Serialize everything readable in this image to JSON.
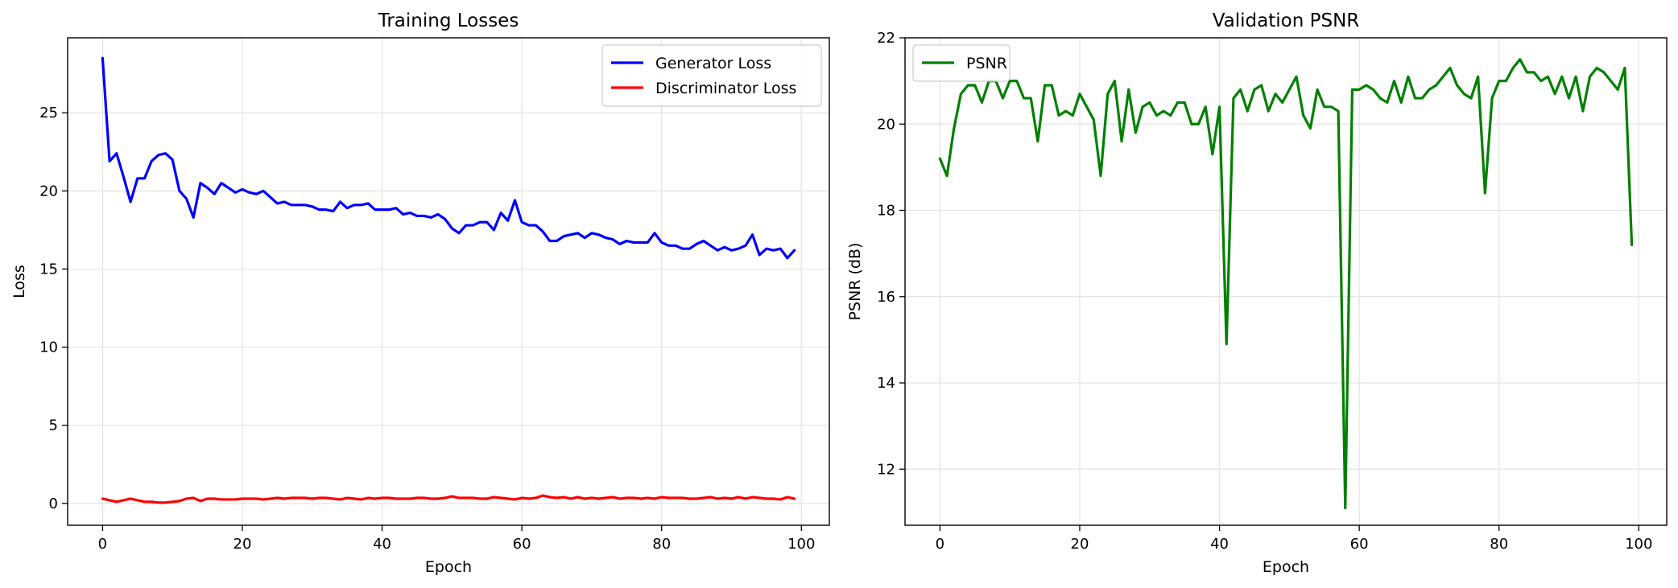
{
  "chart_data": [
    {
      "type": "line",
      "title": "Training Losses",
      "xlabel": "Epoch",
      "ylabel": "Loss",
      "xlim": [
        -5,
        104
      ],
      "ylim": [
        -1.4,
        29.8
      ],
      "xticks": [
        0,
        20,
        40,
        60,
        80,
        100
      ],
      "yticks": [
        0,
        5,
        10,
        15,
        20,
        25
      ],
      "grid": true,
      "legend_position": "top-right",
      "x": [
        0,
        1,
        2,
        3,
        4,
        5,
        6,
        7,
        8,
        9,
        10,
        11,
        12,
        13,
        14,
        15,
        16,
        17,
        18,
        19,
        20,
        21,
        22,
        23,
        24,
        25,
        26,
        27,
        28,
        29,
        30,
        31,
        32,
        33,
        34,
        35,
        36,
        37,
        38,
        39,
        40,
        41,
        42,
        43,
        44,
        45,
        46,
        47,
        48,
        49,
        50,
        51,
        52,
        53,
        54,
        55,
        56,
        57,
        58,
        59,
        60,
        61,
        62,
        63,
        64,
        65,
        66,
        67,
        68,
        69,
        70,
        71,
        72,
        73,
        74,
        75,
        76,
        77,
        78,
        79,
        80,
        81,
        82,
        83,
        84,
        85,
        86,
        87,
        88,
        89,
        90,
        91,
        92,
        93,
        94,
        95,
        96,
        97,
        98,
        99
      ],
      "series": [
        {
          "name": "Generator Loss",
          "color": "#0000ff",
          "values": [
            28.5,
            21.9,
            22.4,
            20.9,
            19.3,
            20.8,
            20.8,
            21.9,
            22.3,
            22.4,
            22.0,
            20.0,
            19.5,
            18.3,
            20.5,
            20.2,
            19.8,
            20.5,
            20.2,
            19.9,
            20.1,
            19.9,
            19.8,
            20.0,
            19.6,
            19.2,
            19.3,
            19.1,
            19.1,
            19.1,
            19.0,
            18.8,
            18.8,
            18.7,
            19.3,
            18.9,
            19.1,
            19.1,
            19.2,
            18.8,
            18.8,
            18.8,
            18.9,
            18.5,
            18.6,
            18.4,
            18.4,
            18.3,
            18.5,
            18.2,
            17.6,
            17.3,
            17.8,
            17.8,
            18.0,
            18.0,
            17.5,
            18.6,
            18.1,
            19.4,
            18.0,
            17.8,
            17.8,
            17.4,
            16.8,
            16.8,
            17.1,
            17.2,
            17.3,
            17.0,
            17.3,
            17.2,
            17.0,
            16.9,
            16.6,
            16.8,
            16.7,
            16.7,
            16.7,
            17.3,
            16.7,
            16.5,
            16.5,
            16.3,
            16.3,
            16.6,
            16.8,
            16.5,
            16.2,
            16.4,
            16.2,
            16.3,
            16.5,
            17.2,
            15.9,
            16.3,
            16.2,
            16.3,
            15.7,
            16.2
          ]
        },
        {
          "name": "Discriminator Loss",
          "color": "#ff0000",
          "values": [
            0.3,
            0.2,
            0.1,
            0.2,
            0.3,
            0.2,
            0.1,
            0.1,
            0.05,
            0.05,
            0.1,
            0.15,
            0.3,
            0.35,
            0.15,
            0.3,
            0.3,
            0.25,
            0.25,
            0.25,
            0.3,
            0.3,
            0.3,
            0.25,
            0.3,
            0.35,
            0.3,
            0.35,
            0.35,
            0.35,
            0.3,
            0.35,
            0.35,
            0.3,
            0.25,
            0.35,
            0.3,
            0.25,
            0.35,
            0.3,
            0.35,
            0.35,
            0.3,
            0.3,
            0.3,
            0.35,
            0.35,
            0.3,
            0.3,
            0.35,
            0.45,
            0.35,
            0.35,
            0.35,
            0.3,
            0.3,
            0.4,
            0.35,
            0.3,
            0.25,
            0.35,
            0.3,
            0.35,
            0.5,
            0.4,
            0.35,
            0.4,
            0.3,
            0.4,
            0.3,
            0.35,
            0.3,
            0.35,
            0.4,
            0.3,
            0.35,
            0.35,
            0.3,
            0.35,
            0.3,
            0.4,
            0.35,
            0.35,
            0.35,
            0.3,
            0.3,
            0.35,
            0.4,
            0.3,
            0.35,
            0.3,
            0.4,
            0.3,
            0.4,
            0.35,
            0.3,
            0.3,
            0.25,
            0.4,
            0.3
          ]
        }
      ]
    },
    {
      "type": "line",
      "title": "Validation PSNR",
      "xlabel": "Epoch",
      "ylabel": "PSNR (dB)",
      "xlim": [
        -5,
        104
      ],
      "ylim": [
        10.7,
        22.0
      ],
      "xticks": [
        0,
        20,
        40,
        60,
        80,
        100
      ],
      "yticks": [
        12,
        14,
        16,
        18,
        20,
        22
      ],
      "grid": true,
      "legend_position": "top-left",
      "x": [
        0,
        1,
        2,
        3,
        4,
        5,
        6,
        7,
        8,
        9,
        10,
        11,
        12,
        13,
        14,
        15,
        16,
        17,
        18,
        19,
        20,
        21,
        22,
        23,
        24,
        25,
        26,
        27,
        28,
        29,
        30,
        31,
        32,
        33,
        34,
        35,
        36,
        37,
        38,
        39,
        40,
        41,
        42,
        43,
        44,
        45,
        46,
        47,
        48,
        49,
        50,
        51,
        52,
        53,
        54,
        55,
        56,
        57,
        58,
        59,
        60,
        61,
        62,
        63,
        64,
        65,
        66,
        67,
        68,
        69,
        70,
        71,
        72,
        73,
        74,
        75,
        76,
        77,
        78,
        79,
        80,
        81,
        82,
        83,
        84,
        85,
        86,
        87,
        88,
        89,
        90,
        91,
        92,
        93,
        94,
        95,
        96,
        97,
        98,
        99
      ],
      "series": [
        {
          "name": "PSNR",
          "color": "#008000",
          "values": [
            19.2,
            18.8,
            19.9,
            20.7,
            20.9,
            20.9,
            20.5,
            21.0,
            21.0,
            20.6,
            21.0,
            21.0,
            20.6,
            20.6,
            19.6,
            20.9,
            20.9,
            20.2,
            20.3,
            20.2,
            20.7,
            20.4,
            20.1,
            18.8,
            20.7,
            21.0,
            19.6,
            20.8,
            19.8,
            20.4,
            20.5,
            20.2,
            20.3,
            20.2,
            20.5,
            20.5,
            20.0,
            20.0,
            20.4,
            19.3,
            20.4,
            14.9,
            20.6,
            20.8,
            20.3,
            20.8,
            20.9,
            20.3,
            20.7,
            20.5,
            20.8,
            21.1,
            20.2,
            19.9,
            20.8,
            20.4,
            20.4,
            20.3,
            11.1,
            20.8,
            20.8,
            20.9,
            20.8,
            20.6,
            20.5,
            21.0,
            20.5,
            21.1,
            20.6,
            20.6,
            20.8,
            20.9,
            21.1,
            21.3,
            20.9,
            20.7,
            20.6,
            21.1,
            18.4,
            20.6,
            21.0,
            21.0,
            21.3,
            21.5,
            21.2,
            21.2,
            21.0,
            21.1,
            20.7,
            21.1,
            20.6,
            21.1,
            20.3,
            21.1,
            21.3,
            21.2,
            21.0,
            20.8,
            21.3,
            17.2
          ]
        }
      ]
    }
  ]
}
